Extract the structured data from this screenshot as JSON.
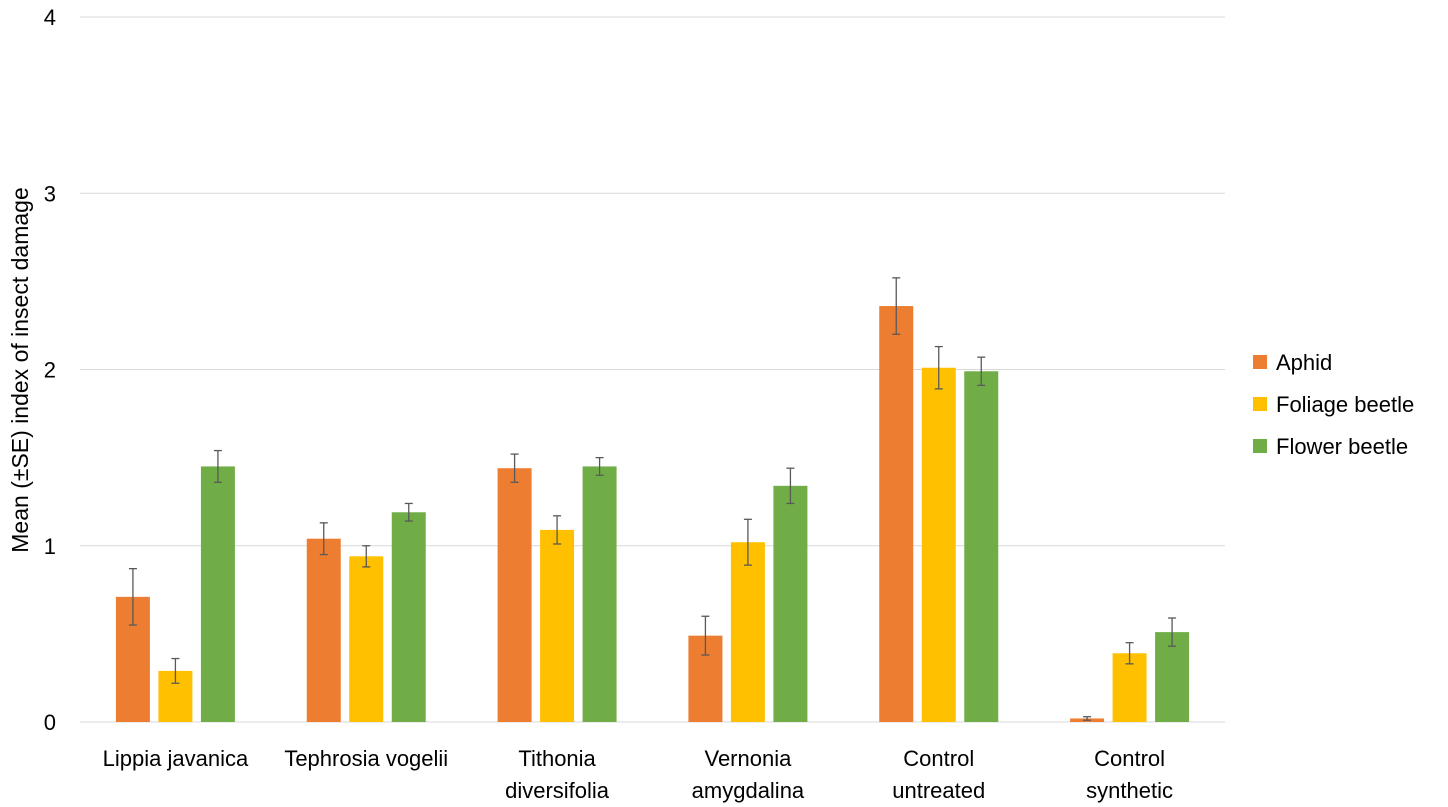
{
  "chart_data": {
    "type": "bar",
    "title": "",
    "xlabel": "",
    "ylabel": "Mean (±SE) index of insect damage",
    "ylim": [
      0,
      4
    ],
    "yticks": [
      "0",
      "1",
      "2",
      "3",
      "4"
    ],
    "grid": true,
    "legend_position": "right",
    "categories": [
      [
        "Lippia javanica"
      ],
      [
        "Tephrosia vogelii"
      ],
      [
        "Tithonia",
        "diversifolia"
      ],
      [
        "Vernonia",
        "amygdalina"
      ],
      [
        "Control",
        "untreated"
      ],
      [
        "Control",
        "synthetic"
      ]
    ],
    "series": [
      {
        "name": "Aphid",
        "color": "#ED7D31",
        "values": [
          0.71,
          1.04,
          1.44,
          0.49,
          2.36,
          0.02
        ],
        "errors": [
          0.16,
          0.09,
          0.08,
          0.11,
          0.16,
          0.01
        ]
      },
      {
        "name": "Foliage beetle",
        "color": "#FFC000",
        "values": [
          0.29,
          0.94,
          1.09,
          1.02,
          2.01,
          0.39
        ],
        "errors": [
          0.07,
          0.06,
          0.08,
          0.13,
          0.12,
          0.06
        ]
      },
      {
        "name": "Flower beetle",
        "color": "#70AD47",
        "values": [
          1.45,
          1.19,
          1.45,
          1.34,
          1.99,
          0.51
        ],
        "errors": [
          0.09,
          0.05,
          0.05,
          0.1,
          0.08,
          0.08
        ]
      }
    ]
  }
}
